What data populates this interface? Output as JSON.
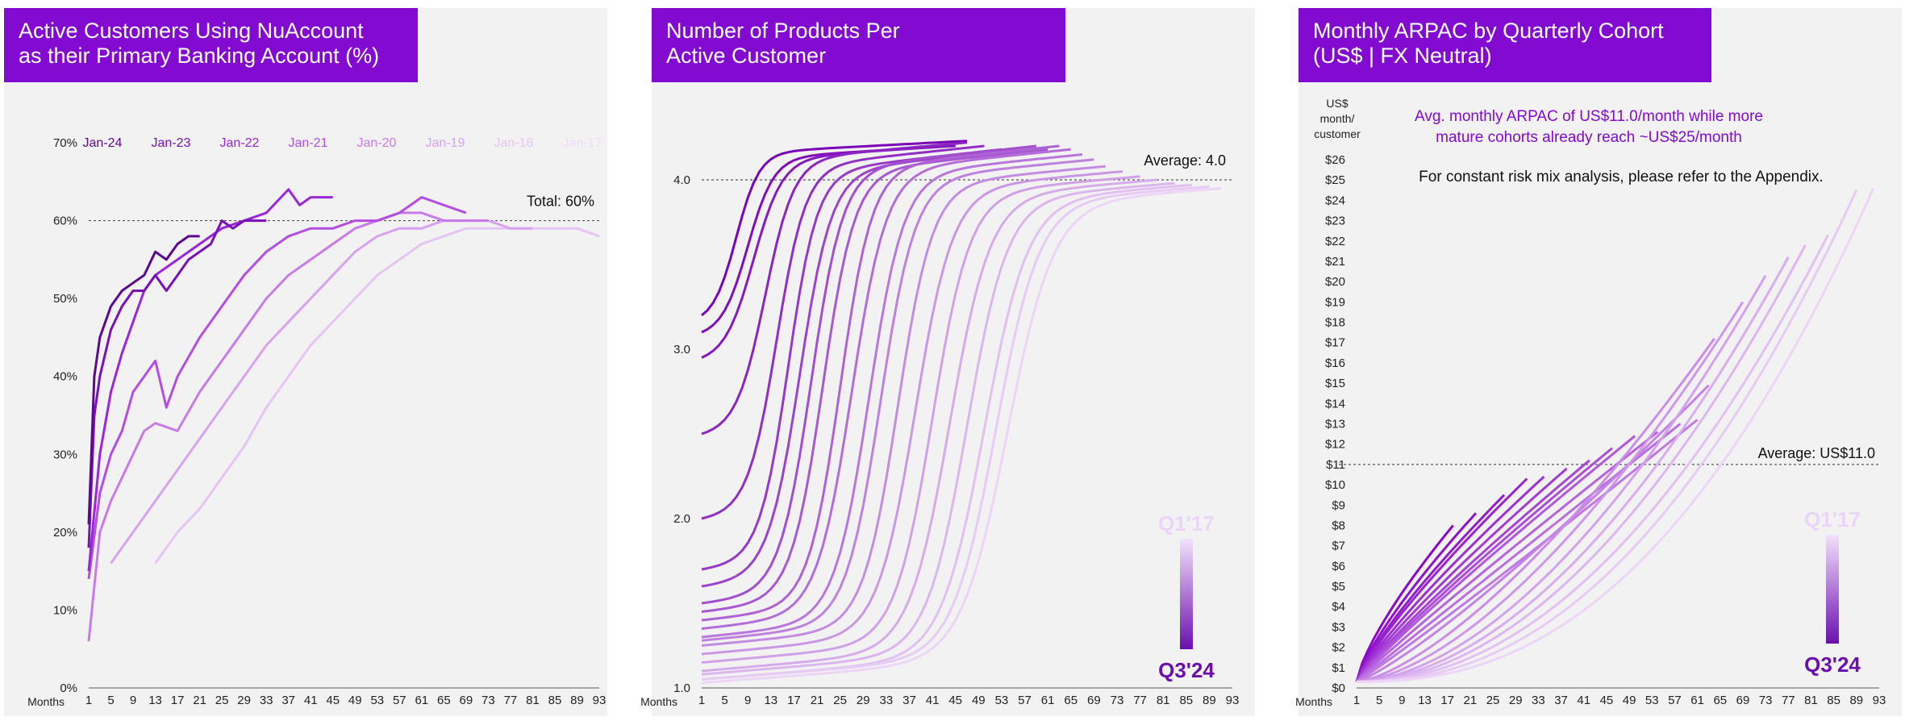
{
  "colors": {
    "accent": "#820ad1",
    "panel_bg": "#f2f2f2",
    "cohort_old": "#ead2f7",
    "cohort_new": "#5b0a8e"
  },
  "panels": [
    {
      "title": "Active Customers Using NuAccount\nas their Primary Banking Account (%)"
    },
    {
      "title": "Number of Products Per\nActive Customer"
    },
    {
      "title": "Monthly ARPAC by Quarterly Cohort\n(US$ | FX Neutral)"
    }
  ],
  "chart_data": [
    {
      "type": "line",
      "title": "Active Customers Using NuAccount as their Primary Banking Account (%)",
      "xlabel": "Months",
      "x_ticks": [
        "1",
        "5",
        "9",
        "13",
        "17",
        "21",
        "25",
        "29",
        "33",
        "37",
        "41",
        "45",
        "49",
        "53",
        "57",
        "61",
        "65",
        "69",
        "73",
        "77",
        "81",
        "85",
        "89",
        "93"
      ],
      "y_ticks": [
        "0%",
        "10%",
        "20%",
        "30%",
        "40%",
        "50%",
        "60%",
        "70%"
      ],
      "xlim": [
        1,
        93
      ],
      "ylim": [
        0,
        70
      ],
      "reference_line": {
        "value": 60,
        "label": "Total: 60%"
      },
      "legend_position": "top",
      "series": [
        {
          "name": "Jan-24",
          "color": "#5b0a8e",
          "points": [
            [
              1,
              21
            ],
            [
              2,
              40
            ],
            [
              3,
              45
            ],
            [
              5,
              49
            ],
            [
              7,
              51
            ],
            [
              9,
              52
            ],
            [
              11,
              53
            ],
            [
              13,
              56
            ],
            [
              15,
              55
            ],
            [
              17,
              57
            ],
            [
              19,
              58
            ],
            [
              21,
              58
            ]
          ]
        },
        {
          "name": "Jan-23",
          "color": "#7a10b8",
          "points": [
            [
              1,
              18
            ],
            [
              2,
              35
            ],
            [
              3,
              40
            ],
            [
              5,
              46
            ],
            [
              7,
              49
            ],
            [
              9,
              51
            ],
            [
              11,
              51
            ],
            [
              13,
              53
            ],
            [
              15,
              51
            ],
            [
              17,
              53
            ],
            [
              19,
              55
            ],
            [
              21,
              56
            ],
            [
              23,
              57
            ],
            [
              25,
              60
            ],
            [
              27,
              59
            ],
            [
              29,
              60
            ],
            [
              31,
              60
            ],
            [
              33,
              60
            ]
          ]
        },
        {
          "name": "Jan-22",
          "color": "#9b25d8",
          "points": [
            [
              1,
              15
            ],
            [
              3,
              30
            ],
            [
              5,
              38
            ],
            [
              7,
              43
            ],
            [
              9,
              47
            ],
            [
              11,
              51
            ],
            [
              13,
              53
            ],
            [
              17,
              55
            ],
            [
              21,
              57
            ],
            [
              25,
              59
            ],
            [
              29,
              60
            ],
            [
              33,
              61
            ],
            [
              37,
              64
            ],
            [
              39,
              62
            ],
            [
              41,
              63
            ],
            [
              43,
              63
            ],
            [
              45,
              63
            ]
          ]
        },
        {
          "name": "Jan-21",
          "color": "#b44ee3",
          "points": [
            [
              1,
              14
            ],
            [
              3,
              25
            ],
            [
              5,
              30
            ],
            [
              7,
              33
            ],
            [
              9,
              38
            ],
            [
              11,
              40
            ],
            [
              13,
              42
            ],
            [
              15,
              36
            ],
            [
              17,
              40
            ],
            [
              21,
              45
            ],
            [
              25,
              49
            ],
            [
              29,
              53
            ],
            [
              33,
              56
            ],
            [
              37,
              58
            ],
            [
              41,
              59
            ],
            [
              45,
              59
            ],
            [
              49,
              60
            ],
            [
              53,
              60
            ],
            [
              57,
              61
            ],
            [
              61,
              63
            ],
            [
              65,
              62
            ],
            [
              69,
              61
            ]
          ]
        },
        {
          "name": "Jan-20",
          "color": "#c87ae9",
          "points": [
            [
              1,
              6
            ],
            [
              3,
              20
            ],
            [
              5,
              24
            ],
            [
              7,
              27
            ],
            [
              9,
              30
            ],
            [
              11,
              33
            ],
            [
              13,
              34
            ],
            [
              17,
              33
            ],
            [
              21,
              38
            ],
            [
              25,
              42
            ],
            [
              29,
              46
            ],
            [
              33,
              50
            ],
            [
              37,
              53
            ],
            [
              41,
              55
            ],
            [
              45,
              57
            ],
            [
              49,
              59
            ],
            [
              53,
              60
            ],
            [
              57,
              61
            ],
            [
              61,
              61
            ],
            [
              65,
              60
            ],
            [
              69,
              60
            ],
            [
              73,
              60
            ]
          ]
        },
        {
          "name": "Jan-19",
          "color": "#d8a2ef",
          "points": [
            [
              5,
              16
            ],
            [
              9,
              20
            ],
            [
              13,
              24
            ],
            [
              17,
              28
            ],
            [
              21,
              32
            ],
            [
              25,
              36
            ],
            [
              29,
              40
            ],
            [
              33,
              44
            ],
            [
              37,
              47
            ],
            [
              41,
              50
            ],
            [
              45,
              53
            ],
            [
              49,
              56
            ],
            [
              53,
              58
            ],
            [
              57,
              59
            ],
            [
              61,
              59
            ],
            [
              65,
              60
            ],
            [
              69,
              60
            ],
            [
              73,
              60
            ],
            [
              77,
              59
            ],
            [
              81,
              59
            ]
          ]
        },
        {
          "name": "Jan-18",
          "color": "#e6c4f4",
          "points": [
            [
              13,
              16
            ],
            [
              17,
              20
            ],
            [
              21,
              23
            ],
            [
              25,
              27
            ],
            [
              29,
              31
            ],
            [
              33,
              36
            ],
            [
              37,
              40
            ],
            [
              41,
              44
            ],
            [
              45,
              47
            ],
            [
              49,
              50
            ],
            [
              53,
              53
            ],
            [
              57,
              55
            ],
            [
              61,
              57
            ],
            [
              65,
              58
            ],
            [
              69,
              59
            ],
            [
              73,
              59
            ],
            [
              77,
              59
            ],
            [
              81,
              59
            ],
            [
              85,
              59
            ],
            [
              89,
              59
            ],
            [
              93,
              58
            ]
          ]
        },
        {
          "name": "Jan-17",
          "color": "#f0dcf8",
          "points": []
        }
      ]
    },
    {
      "type": "line",
      "title": "Number of Products Per Active Customer",
      "xlabel": "Months",
      "x_ticks": [
        "1",
        "5",
        "9",
        "13",
        "17",
        "21",
        "25",
        "29",
        "33",
        "37",
        "41",
        "45",
        "49",
        "53",
        "57",
        "61",
        "65",
        "69",
        "73",
        "77",
        "81",
        "85",
        "89",
        "93"
      ],
      "y_ticks": [
        "1.0",
        "2.0",
        "3.0",
        "4.0"
      ],
      "xlim": [
        1,
        93
      ],
      "ylim": [
        1.0,
        4.3
      ],
      "reference_line": {
        "value": 4.0,
        "label": "Average: 4.0"
      },
      "legend": {
        "top": "Q1'17",
        "bottom": "Q3'24"
      },
      "series_note": "Quarterly cohorts Q3'24 (darkest) to Q1'17 (lightest)",
      "series": [
        {
          "start": 1,
          "end": 47,
          "y0": 3.2,
          "mid": 7,
          "span": 8,
          "top": 4.23
        },
        {
          "start": 1,
          "end": 45,
          "y0": 3.1,
          "mid": 9,
          "span": 9,
          "top": 4.2
        },
        {
          "start": 1,
          "end": 44,
          "y0": 2.95,
          "mid": 10,
          "span": 10,
          "top": 4.2
        },
        {
          "start": 1,
          "end": 47,
          "y0": 2.5,
          "mid": 12,
          "span": 10,
          "top": 4.22
        },
        {
          "start": 1,
          "end": 50,
          "y0": 2.0,
          "mid": 14,
          "span": 10,
          "top": 4.2
        },
        {
          "start": 1,
          "end": 53,
          "y0": 1.7,
          "mid": 16,
          "span": 10,
          "top": 4.18
        },
        {
          "start": 1,
          "end": 56,
          "y0": 1.6,
          "mid": 18,
          "span": 11,
          "top": 4.18
        },
        {
          "start": 1,
          "end": 59,
          "y0": 1.5,
          "mid": 20,
          "span": 11,
          "top": 4.2
        },
        {
          "start": 1,
          "end": 61,
          "y0": 1.45,
          "mid": 22,
          "span": 11,
          "top": 4.18
        },
        {
          "start": 1,
          "end": 63,
          "y0": 1.4,
          "mid": 25,
          "span": 11,
          "top": 4.2
        },
        {
          "start": 1,
          "end": 65,
          "y0": 1.35,
          "mid": 27,
          "span": 12,
          "top": 4.18
        },
        {
          "start": 1,
          "end": 67,
          "y0": 1.3,
          "mid": 30,
          "span": 12,
          "top": 4.15
        },
        {
          "start": 1,
          "end": 69,
          "y0": 1.28,
          "mid": 32,
          "span": 12,
          "top": 4.12
        },
        {
          "start": 1,
          "end": 71,
          "y0": 1.25,
          "mid": 35,
          "span": 12,
          "top": 4.08
        },
        {
          "start": 1,
          "end": 74,
          "y0": 1.2,
          "mid": 38,
          "span": 13,
          "top": 4.05
        },
        {
          "start": 1,
          "end": 77,
          "y0": 1.15,
          "mid": 41,
          "span": 13,
          "top": 4.02
        },
        {
          "start": 1,
          "end": 80,
          "y0": 1.1,
          "mid": 44,
          "span": 14,
          "top": 4.0
        },
        {
          "start": 1,
          "end": 83,
          "y0": 1.08,
          "mid": 47,
          "span": 14,
          "top": 3.98
        },
        {
          "start": 1,
          "end": 86,
          "y0": 1.05,
          "mid": 50,
          "span": 15,
          "top": 3.97
        },
        {
          "start": 1,
          "end": 89,
          "y0": 1.05,
          "mid": 52,
          "span": 15,
          "top": 3.96
        },
        {
          "start": 1,
          "end": 91,
          "y0": 1.03,
          "mid": 54,
          "span": 16,
          "top": 3.95
        }
      ]
    },
    {
      "type": "line",
      "title": "Monthly ARPAC by Quarterly Cohort (US$ | FX Neutral)",
      "xlabel": "Months",
      "ylabel": "US$\nmonth/\ncustomer",
      "x_ticks": [
        "1",
        "5",
        "9",
        "13",
        "17",
        "21",
        "25",
        "29",
        "33",
        "37",
        "41",
        "45",
        "49",
        "53",
        "57",
        "61",
        "65",
        "69",
        "73",
        "77",
        "81",
        "85",
        "89",
        "93"
      ],
      "y_ticks": [
        "$0",
        "$1",
        "$2",
        "$3",
        "$4",
        "$5",
        "$6",
        "$7",
        "$8",
        "$9",
        "$10",
        "$11",
        "$12",
        "$13",
        "$14",
        "$15",
        "$16",
        "$17",
        "$18",
        "$19",
        "$20",
        "$21",
        "$22",
        "$23",
        "$24",
        "$25",
        "$26"
      ],
      "xlim": [
        1,
        93
      ],
      "ylim": [
        0,
        26
      ],
      "reference_line": {
        "value": 11,
        "label": "Average: US$11.0"
      },
      "annotation_primary": "Avg. monthly ARPAC of US$11.0/month while more mature cohorts already reach ~US$25/month",
      "annotation_secondary": "For constant risk mix analysis, please refer to the Appendix.",
      "legend": {
        "top": "Q1'17",
        "bottom": "Q3'24"
      },
      "series": [
        {
          "end": 18,
          "final": 8.0,
          "shape": 0.75
        },
        {
          "end": 22,
          "final": 8.6,
          "shape": 0.78
        },
        {
          "end": 27,
          "final": 9.5,
          "shape": 0.8
        },
        {
          "end": 31,
          "final": 10.3,
          "shape": 0.82
        },
        {
          "end": 34,
          "final": 10.4,
          "shape": 0.84
        },
        {
          "end": 38,
          "final": 10.8,
          "shape": 0.86
        },
        {
          "end": 42,
          "final": 11.2,
          "shape": 0.88
        },
        {
          "end": 46,
          "final": 11.8,
          "shape": 0.9
        },
        {
          "end": 50,
          "final": 12.4,
          "shape": 0.92
        },
        {
          "end": 54,
          "final": 12.6,
          "shape": 0.95
        },
        {
          "end": 58,
          "final": 13.0,
          "shape": 1.0
        },
        {
          "end": 61,
          "final": 13.2,
          "shape": 1.05
        },
        {
          "end": 63,
          "final": 14.9,
          "shape": 1.2
        },
        {
          "end": 64,
          "final": 17.2,
          "shape": 1.45
        },
        {
          "end": 69,
          "final": 19.0,
          "shape": 1.6
        },
        {
          "end": 73,
          "final": 20.3,
          "shape": 1.75
        },
        {
          "end": 77,
          "final": 21.2,
          "shape": 1.85
        },
        {
          "end": 80,
          "final": 21.8,
          "shape": 1.95
        },
        {
          "end": 84,
          "final": 22.3,
          "shape": 2.05
        },
        {
          "end": 89,
          "final": 24.5,
          "shape": 2.2
        },
        {
          "end": 92,
          "final": 24.6,
          "shape": 2.35
        }
      ]
    }
  ]
}
